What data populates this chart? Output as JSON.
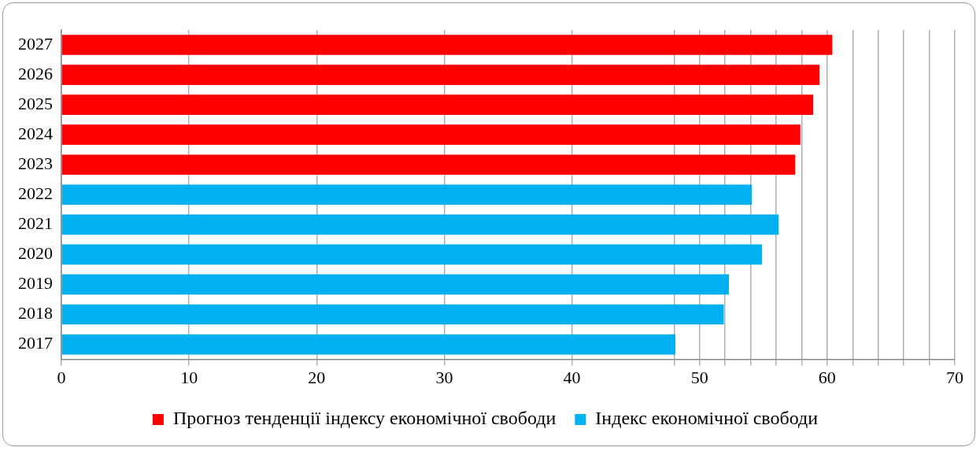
{
  "chart_data": {
    "type": "bar",
    "orientation": "horizontal",
    "categories": [
      "2027",
      "2026",
      "2025",
      "2024",
      "2023",
      "2022",
      "2021",
      "2020",
      "2019",
      "2018",
      "2017"
    ],
    "series": [
      {
        "name": "Прогноз тенденції індексу економічної свободи",
        "color": "#ff0000",
        "values": [
          60.4,
          59.4,
          58.9,
          57.9,
          57.5,
          null,
          null,
          null,
          null,
          null,
          null
        ]
      },
      {
        "name": "Індекс економічної свободи",
        "color": "#00b0f0",
        "values": [
          null,
          null,
          null,
          null,
          null,
          54.1,
          56.2,
          54.9,
          52.3,
          51.9,
          48.1
        ]
      }
    ],
    "xlim": [
      0,
      70
    ],
    "xticks": [
      0,
      10,
      20,
      30,
      40,
      {
        "value": 48,
        "label": null
      },
      50,
      {
        "value": 52,
        "label": null
      },
      {
        "value": 54,
        "label": null
      },
      {
        "value": 56,
        "label": null
      },
      {
        "value": 58,
        "label": null
      },
      60,
      {
        "value": 62,
        "label": null
      },
      {
        "value": 64,
        "label": null
      },
      {
        "value": 66,
        "label": null
      },
      {
        "value": 68,
        "label": null
      },
      70
    ],
    "grid": "x",
    "legend": "bottom"
  }
}
